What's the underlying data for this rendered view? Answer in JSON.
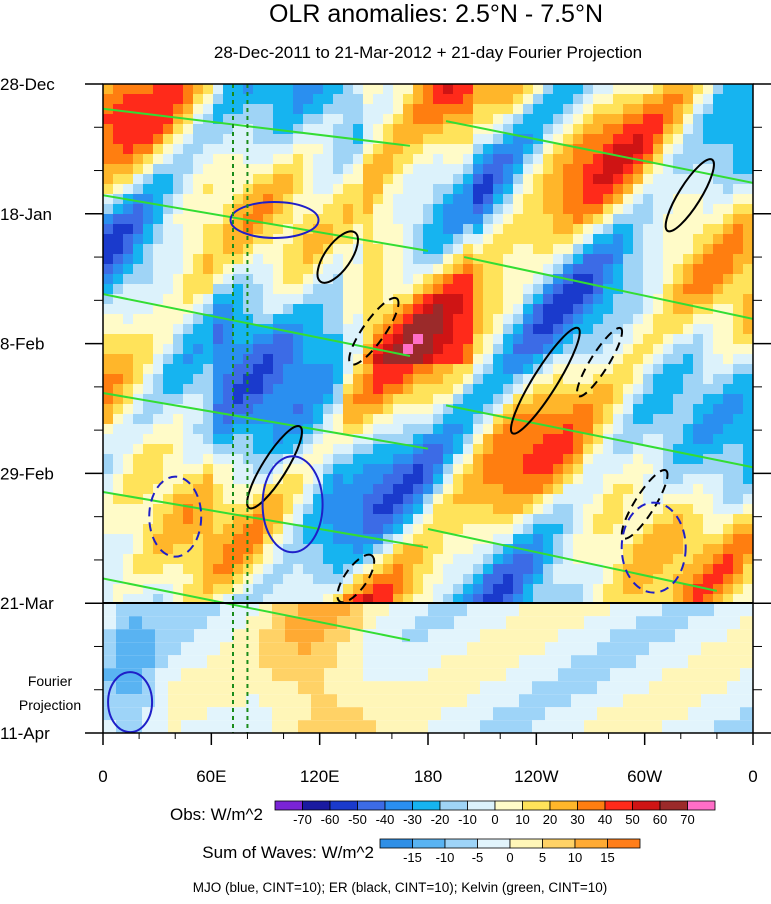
{
  "chart_data": {
    "type": "heatmap",
    "title": "OLR anomalies: 2.5°N - 7.5°N",
    "subtitle": "28-Dec-2011 to 21-Mar-2012 + 21-day Fourier Projection",
    "x_ticks": [
      "0",
      "60E",
      "120E",
      "180",
      "120W",
      "60W",
      "0"
    ],
    "x_tick_lons": [
      0,
      60,
      120,
      180,
      240,
      300,
      360
    ],
    "y_ticks": [
      "28-Dec",
      "18-Jan",
      "8-Feb",
      "29-Feb",
      "21-Mar",
      "11-Apr"
    ],
    "y_tick_days": [
      0,
      21,
      42,
      63,
      84,
      105
    ],
    "projection_label": [
      "Fourier",
      "Projection"
    ],
    "projection_start_day": 84,
    "obs_colorbar": {
      "label": "Obs: W/m^2",
      "levels": [
        "-70",
        "-60",
        "-50",
        "-40",
        "-30",
        "-20",
        "-10",
        "0",
        "10",
        "20",
        "30",
        "40",
        "50",
        "60",
        "70"
      ],
      "colors": [
        "#7a24d6",
        "#1a1aa0",
        "#1a3acc",
        "#3c6be6",
        "#2a8ff0",
        "#16b4f0",
        "#9fd4f6",
        "#dcf2fb",
        "#fffbc8",
        "#ffe35a",
        "#ffb62a",
        "#ff7e10",
        "#ff2a1a",
        "#cf1414",
        "#9b2a2a",
        "#ff6ec7"
      ]
    },
    "waves_colorbar": {
      "label": "Sum of Waves: W/m^2",
      "levels": [
        "-15",
        "-10",
        "-5",
        "0",
        "5",
        "10",
        "15"
      ],
      "colors": [
        "#2f8fe6",
        "#59b3f2",
        "#9ed4f8",
        "#e2f4fc",
        "#fff6b8",
        "#ffd266",
        "#ffaa33",
        "#ff7e1a"
      ]
    },
    "footnote": "MJO (blue, CINT=10); ER (black, CINT=10); Kelvin (green, CINT=10)",
    "contours": [
      {
        "name": "MJO",
        "color": "#1f1fc8",
        "cint": 10
      },
      {
        "name": "ER",
        "color": "#000000",
        "cint": 10
      },
      {
        "name": "Kelvin",
        "color": "#33dd33",
        "cint": 10
      }
    ],
    "marker_lines_lon": [
      72,
      80
    ]
  }
}
